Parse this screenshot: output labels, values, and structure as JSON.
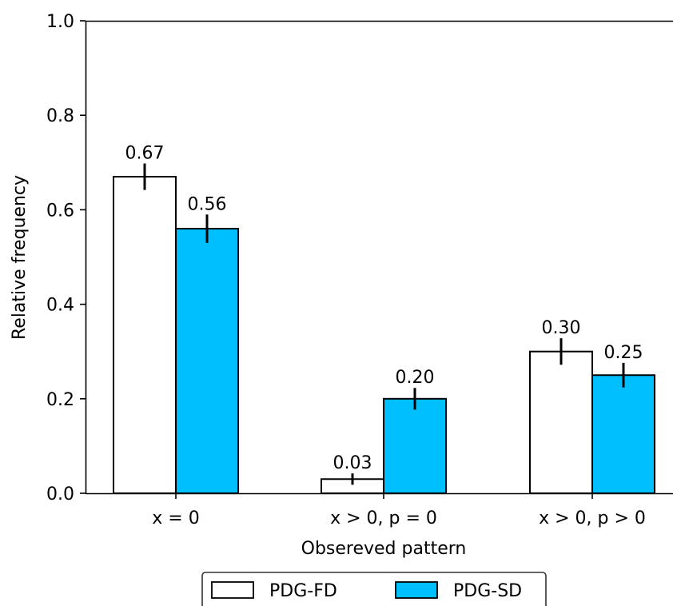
{
  "chart_data": {
    "type": "bar",
    "categories": [
      "x = 0",
      "x > 0, p = 0",
      "x > 0, p > 0"
    ],
    "series": [
      {
        "name": "PDG-FD",
        "values": [
          0.67,
          0.03,
          0.3
        ],
        "errors": [
          0.028,
          0.012,
          0.028
        ],
        "labels": [
          "0.67",
          "0.03",
          "0.30"
        ],
        "color": "#ffffff"
      },
      {
        "name": "PDG-SD",
        "values": [
          0.56,
          0.2,
          0.25
        ],
        "errors": [
          0.03,
          0.023,
          0.026
        ],
        "labels": [
          "0.56",
          "0.20",
          "0.25"
        ],
        "color": "#00bfff"
      }
    ],
    "xlabel": "Obsereved pattern",
    "ylabel": "Relative frequency",
    "ylim": [
      0,
      1.0
    ],
    "yticks": [
      0.0,
      0.2,
      0.4,
      0.6,
      0.8,
      1.0
    ],
    "ytick_labels": [
      "0.0",
      "0.2",
      "0.4",
      "0.6",
      "0.8",
      "1.0"
    ],
    "grid": false,
    "legend_position": "bottom-center"
  }
}
